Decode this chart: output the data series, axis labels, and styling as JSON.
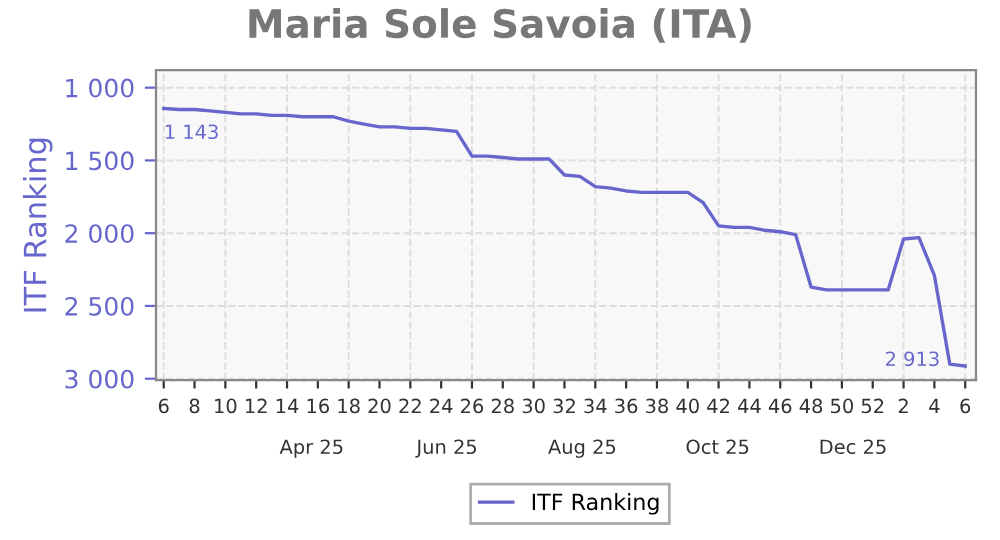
{
  "chart_data": {
    "type": "line",
    "title": "Maria Sole Savoia (ITA)",
    "ylabel": "ITF Ranking",
    "categories": [
      "6",
      null,
      "8",
      null,
      "10",
      null,
      "12",
      null,
      "14",
      null,
      "16",
      null,
      "18",
      null,
      "20",
      null,
      "22",
      null,
      "24",
      null,
      "26",
      null,
      "28",
      null,
      "30",
      null,
      "32",
      null,
      "34",
      null,
      "36",
      null,
      "38",
      null,
      "40",
      null,
      "42",
      null,
      "44",
      null,
      "46",
      null,
      "48",
      null,
      "50",
      null,
      "52",
      null,
      "2",
      null,
      "4",
      null,
      "6"
    ],
    "series": [
      {
        "name": "ITF Ranking",
        "color": "#6666cc",
        "values": [
          1143,
          1150,
          1150,
          1160,
          1170,
          1180,
          1180,
          1190,
          1190,
          1200,
          1200,
          1200,
          1230,
          1250,
          1270,
          1270,
          1280,
          1280,
          1290,
          1300,
          1470,
          1470,
          1480,
          1490,
          1490,
          1490,
          1600,
          1610,
          1680,
          1690,
          1710,
          1720,
          1720,
          1720,
          1720,
          1790,
          1950,
          1960,
          1960,
          1980,
          1990,
          2010,
          2370,
          2390,
          2390,
          2390,
          2390,
          2390,
          2040,
          2030,
          2290,
          2900,
          2913
        ]
      }
    ],
    "value_labels": [
      "1 143",
      null,
      null,
      null,
      null,
      null,
      null,
      null,
      null,
      null,
      null,
      null,
      null,
      null,
      null,
      null,
      null,
      null,
      null,
      null,
      null,
      null,
      null,
      null,
      null,
      null,
      null,
      null,
      null,
      null,
      null,
      null,
      null,
      null,
      null,
      null,
      null,
      null,
      null,
      null,
      null,
      null,
      null,
      null,
      null,
      null,
      null,
      null,
      null,
      null,
      null,
      null,
      "2 913"
    ],
    "annotations": [
      "Apr 25",
      "Jun 25",
      "Aug 25",
      "Oct 25",
      "Dec 25"
    ],
    "ylim": [
      3010,
      880
    ],
    "yticks": [
      {
        "value": 1000,
        "label": "1 000"
      },
      {
        "value": 1500,
        "label": "1 500"
      },
      {
        "value": 2000,
        "label": "2 000"
      },
      {
        "value": 2500,
        "label": "2 500"
      },
      {
        "value": 3000,
        "label": "3 000"
      }
    ],
    "grid": true,
    "legend": "bottom",
    "marker": "none",
    "line_style": "solid"
  }
}
